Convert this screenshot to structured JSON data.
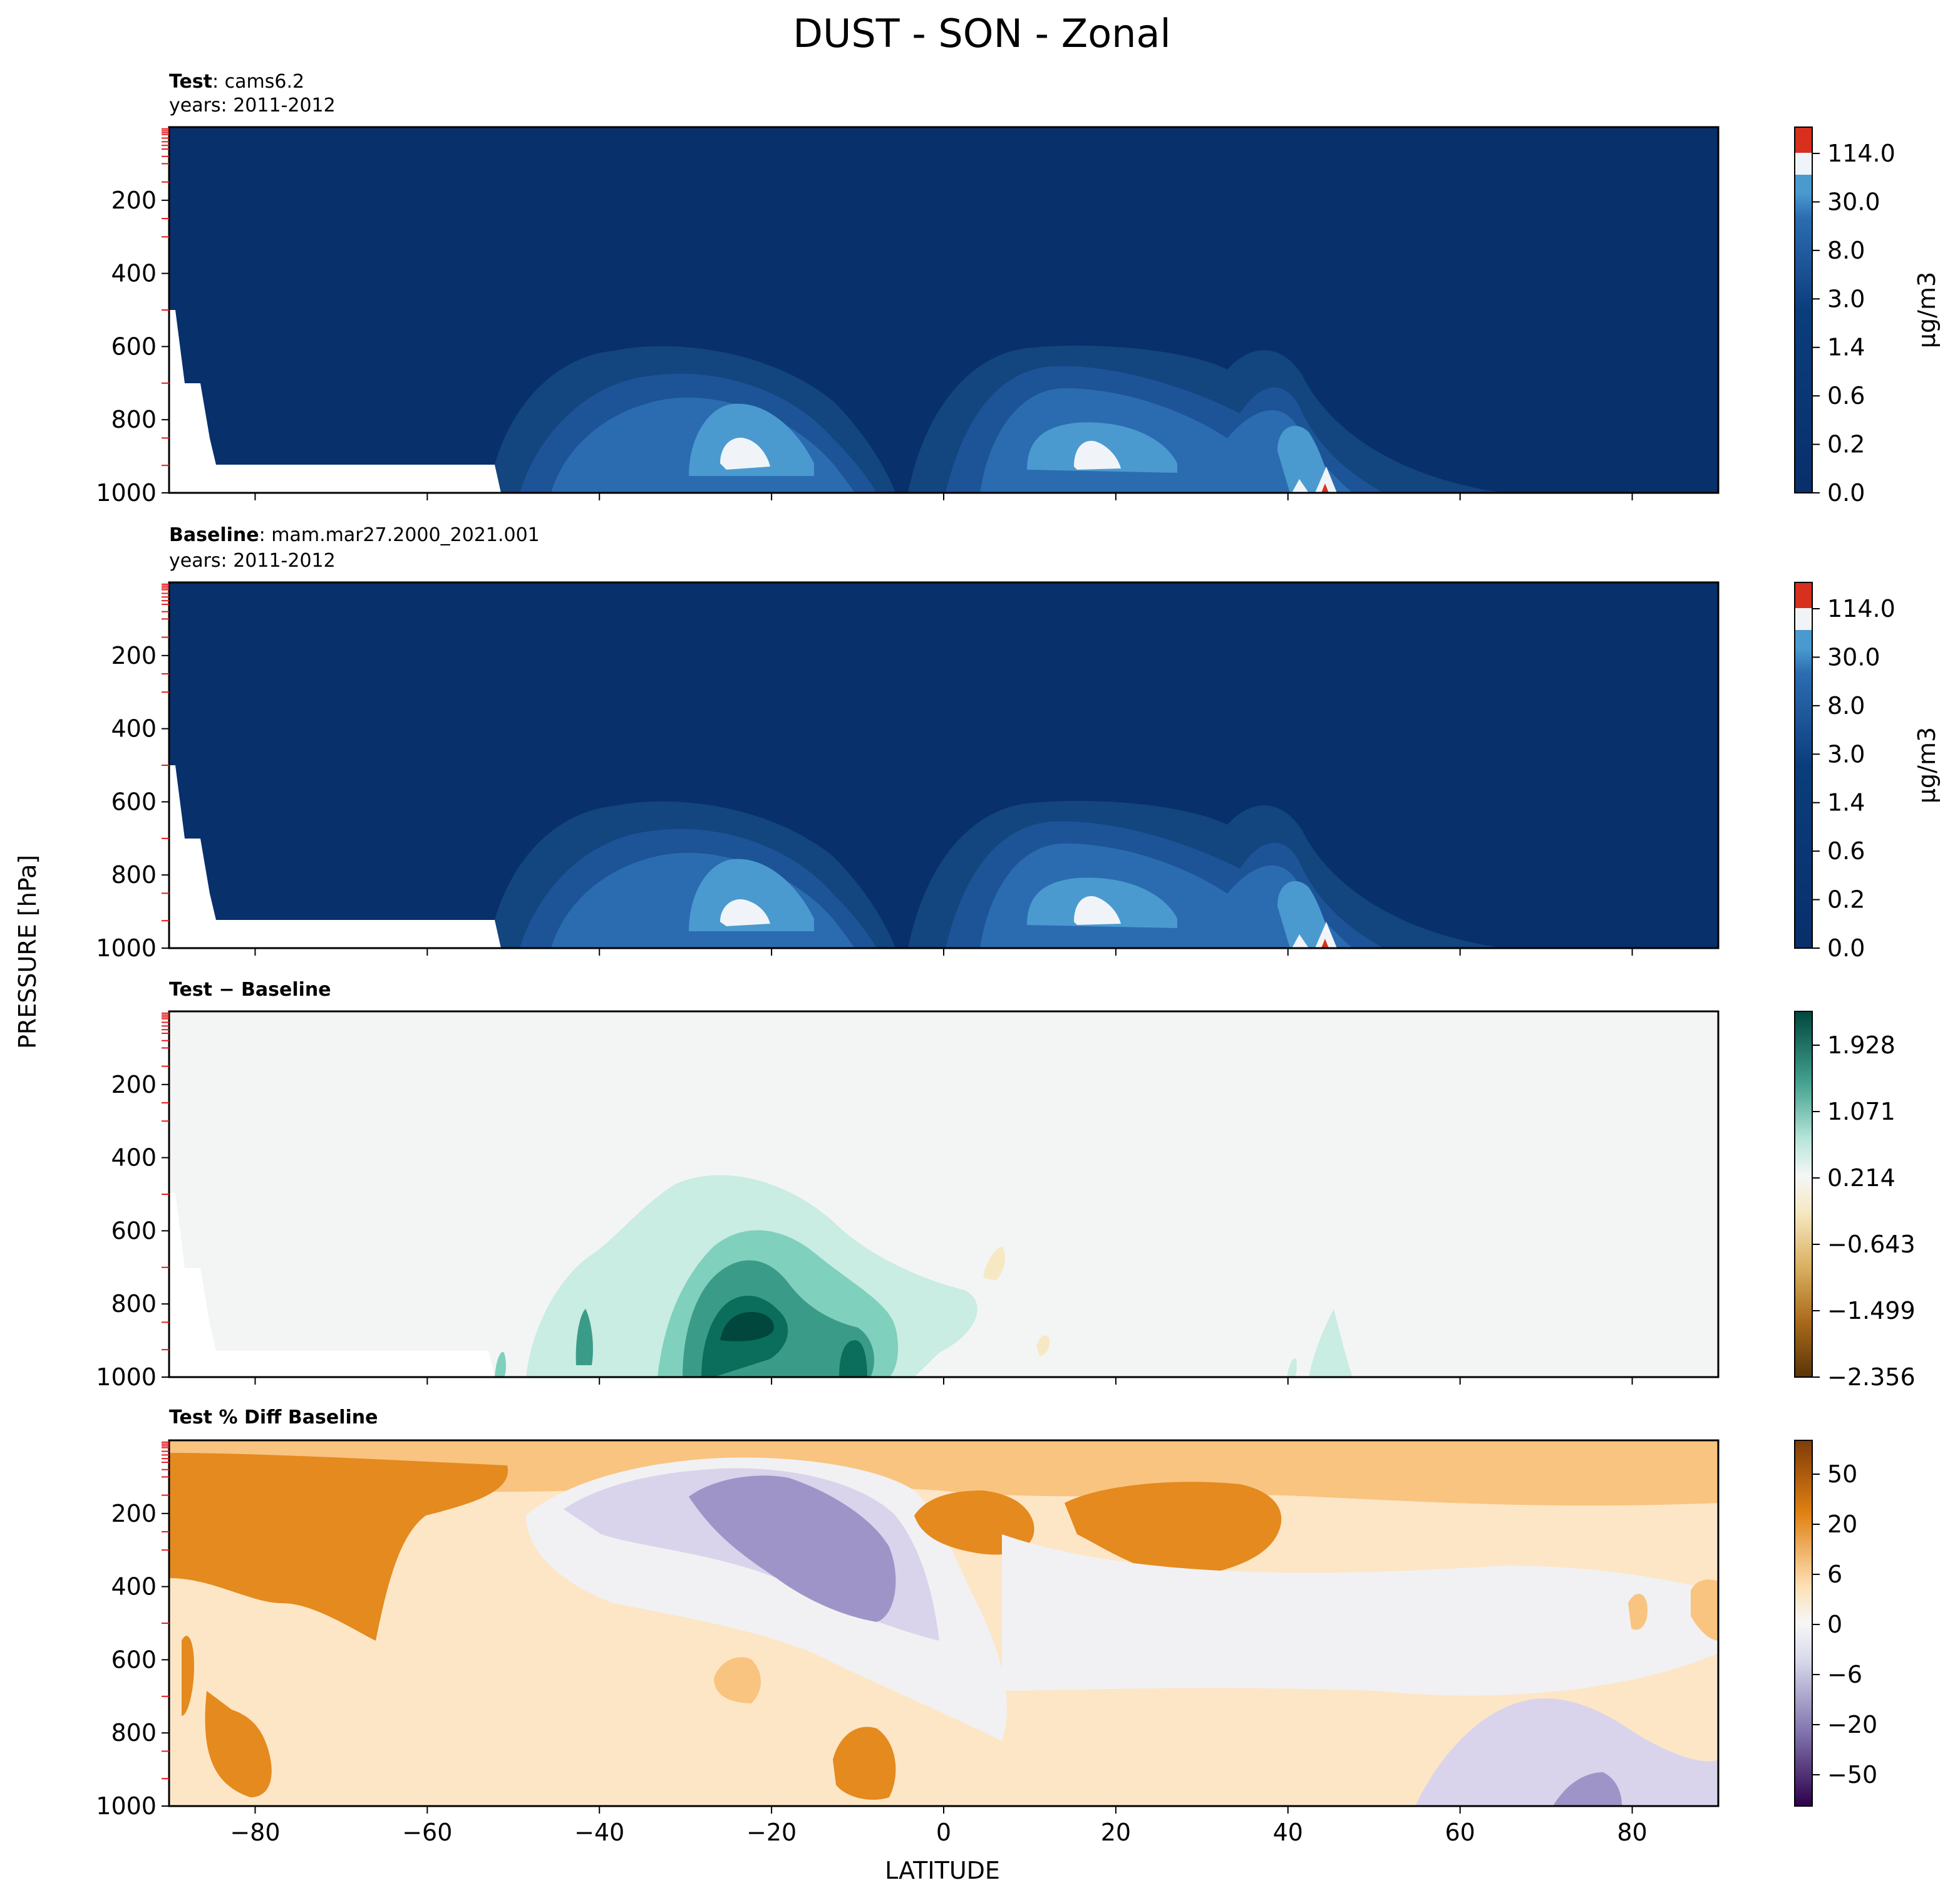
{
  "figure": {
    "title": "DUST - SON - Zonal",
    "shared_ylabel": "PRESSURE [hPa]",
    "shared_xlabel": "LATITUDE"
  },
  "colors": {
    "dust_dark": "#08306b",
    "dust_mid": "#2b6cb0",
    "dust_light": "#4a9ad0",
    "dust_white": "#f0f4f8",
    "dust_red": "#d7301f",
    "diff_bg": "#f3f5f4",
    "diff_green_light": "#c9ece3",
    "diff_green_mid": "#7fd0bd",
    "diff_green_dark": "#3a9c88",
    "diff_green_darkest": "#01473d",
    "pct_orange_light": "#fde6c6",
    "pct_orange_mid": "#f9c47f",
    "pct_orange_dark": "#e58a1f",
    "pct_purple_light": "#d9d4ec",
    "pct_purple_mid": "#9f94c7",
    "pct_white": "#f1f1f4"
  },
  "chart_data": [
    {
      "type": "heatmap",
      "panel": "test",
      "title_bold": "Test",
      "title_rest": ": cams6.2",
      "subtitle": "years: 2011-2012",
      "xlim": [
        -90,
        90
      ],
      "ylim": [
        1000,
        0
      ],
      "xticks": [
        -80,
        -60,
        -40,
        -20,
        0,
        20,
        40,
        60,
        80
      ],
      "yticks": [
        200,
        400,
        600,
        800,
        1000
      ],
      "colorbar_label": "μg/m3",
      "colorbar_ticks": [
        "114.0",
        "30.0",
        "8.0",
        "3.0",
        "1.4",
        "0.6",
        "0.2",
        "0.0"
      ],
      "features": [
        {
          "lat": -25,
          "plev": 920,
          "value": "114.0"
        },
        {
          "lat": 16,
          "plev": 900,
          "value": "114.0"
        },
        {
          "lat": 45,
          "plev": 1000,
          "value": ">114.0"
        }
      ]
    },
    {
      "type": "heatmap",
      "panel": "baseline",
      "title_bold": "Baseline",
      "title_rest": ": mam.mar27.2000_2021.001",
      "subtitle": "years: 2011-2012",
      "xlim": [
        -90,
        90
      ],
      "ylim": [
        1000,
        0
      ],
      "xticks": [
        -80,
        -60,
        -40,
        -20,
        0,
        20,
        40,
        60,
        80
      ],
      "yticks": [
        200,
        400,
        600,
        800,
        1000
      ],
      "colorbar_label": "μg/m3",
      "colorbar_ticks": [
        "114.0",
        "30.0",
        "8.0",
        "3.0",
        "1.4",
        "0.6",
        "0.2",
        "0.0"
      ]
    },
    {
      "type": "heatmap",
      "panel": "difference",
      "title_bold": "Test − Baseline",
      "xlim": [
        -90,
        90
      ],
      "ylim": [
        1000,
        0
      ],
      "xticks": [
        -80,
        -60,
        -40,
        -20,
        0,
        20,
        40,
        60,
        80
      ],
      "yticks": [
        200,
        400,
        600,
        800,
        1000
      ],
      "colorbar_ticks": [
        "1.928",
        "1.071",
        "0.214",
        "−0.643",
        "−1.499",
        "−2.356"
      ],
      "colorbar_range": [
        -2.356,
        2.356
      ]
    },
    {
      "type": "heatmap",
      "panel": "percent_diff",
      "title_bold": "Test % Diff Baseline",
      "xlim": [
        -90,
        90
      ],
      "ylim": [
        1000,
        0
      ],
      "xticks": [
        -80,
        -60,
        -40,
        -20,
        0,
        20,
        40,
        60,
        80
      ],
      "yticks": [
        200,
        400,
        600,
        800,
        1000
      ],
      "colorbar_ticks": [
        "50",
        "20",
        "6",
        "0",
        "−6",
        "−20",
        "−50"
      ]
    }
  ]
}
